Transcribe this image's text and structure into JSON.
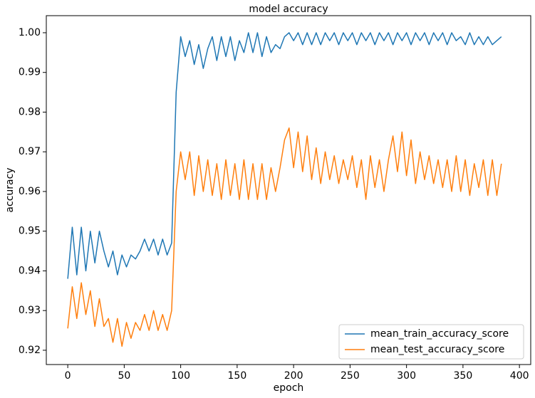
{
  "chart_data": {
    "type": "line",
    "title": "model accuracy",
    "xlabel": "epoch",
    "ylabel": "accuracy",
    "x": [
      0,
      4,
      8,
      12,
      16,
      20,
      24,
      28,
      32,
      36,
      40,
      44,
      48,
      52,
      56,
      60,
      64,
      68,
      72,
      76,
      80,
      84,
      88,
      92,
      96,
      100,
      104,
      108,
      112,
      116,
      120,
      124,
      128,
      132,
      136,
      140,
      144,
      148,
      152,
      156,
      160,
      164,
      168,
      172,
      176,
      180,
      184,
      188,
      192,
      196,
      200,
      204,
      208,
      212,
      216,
      220,
      224,
      228,
      232,
      236,
      240,
      244,
      248,
      252,
      256,
      260,
      264,
      268,
      272,
      276,
      280,
      284,
      288,
      292,
      296,
      300,
      304,
      308,
      312,
      316,
      320,
      324,
      328,
      332,
      336,
      340,
      344,
      348,
      352,
      356,
      360,
      364,
      368,
      372,
      376,
      380,
      384
    ],
    "series": [
      {
        "name": "mean_train_accuracy_score",
        "color": "#1f77b4",
        "values": [
          0.938,
          0.951,
          0.939,
          0.951,
          0.94,
          0.95,
          0.942,
          0.95,
          0.945,
          0.941,
          0.945,
          0.939,
          0.944,
          0.941,
          0.944,
          0.943,
          0.945,
          0.948,
          0.945,
          0.948,
          0.944,
          0.948,
          0.944,
          0.947,
          0.985,
          0.999,
          0.994,
          0.998,
          0.992,
          0.997,
          0.991,
          0.996,
          0.999,
          0.993,
          0.999,
          0.994,
          0.999,
          0.993,
          0.998,
          0.995,
          1.0,
          0.995,
          1.0,
          0.994,
          0.999,
          0.995,
          0.997,
          0.996,
          0.999,
          1.0,
          0.998,
          1.0,
          0.997,
          1.0,
          0.997,
          1.0,
          0.997,
          1.0,
          0.998,
          1.0,
          0.997,
          1.0,
          0.998,
          1.0,
          0.997,
          1.0,
          0.998,
          1.0,
          0.997,
          1.0,
          0.998,
          1.0,
          0.997,
          1.0,
          0.998,
          1.0,
          0.997,
          1.0,
          0.998,
          1.0,
          0.997,
          1.0,
          0.998,
          1.0,
          0.997,
          1.0,
          0.998,
          0.999,
          0.997,
          1.0,
          0.997,
          0.999,
          0.997,
          0.999,
          0.997,
          0.998,
          0.999
        ]
      },
      {
        "name": "mean_test_accuracy_score",
        "color": "#ff7f0e",
        "values": [
          0.9255,
          0.936,
          0.928,
          0.937,
          0.929,
          0.935,
          0.926,
          0.933,
          0.926,
          0.928,
          0.922,
          0.928,
          0.921,
          0.927,
          0.923,
          0.927,
          0.925,
          0.929,
          0.925,
          0.93,
          0.925,
          0.929,
          0.925,
          0.93,
          0.96,
          0.97,
          0.963,
          0.97,
          0.959,
          0.969,
          0.96,
          0.968,
          0.959,
          0.967,
          0.958,
          0.968,
          0.959,
          0.967,
          0.958,
          0.968,
          0.958,
          0.967,
          0.958,
          0.967,
          0.958,
          0.966,
          0.96,
          0.966,
          0.973,
          0.976,
          0.966,
          0.975,
          0.965,
          0.974,
          0.963,
          0.971,
          0.962,
          0.97,
          0.963,
          0.969,
          0.962,
          0.968,
          0.963,
          0.969,
          0.961,
          0.968,
          0.958,
          0.969,
          0.961,
          0.968,
          0.96,
          0.968,
          0.974,
          0.965,
          0.975,
          0.964,
          0.973,
          0.962,
          0.97,
          0.963,
          0.969,
          0.962,
          0.968,
          0.961,
          0.968,
          0.96,
          0.969,
          0.96,
          0.968,
          0.959,
          0.967,
          0.961,
          0.968,
          0.959,
          0.968,
          0.959,
          0.967
        ]
      }
    ],
    "xlim": [
      -19,
      410
    ],
    "xticks": [
      0,
      50,
      100,
      150,
      200,
      250,
      300,
      350,
      400
    ],
    "ylim": [
      0.9164,
      1.0043
    ],
    "yticks": [
      0.92,
      0.93,
      0.94,
      0.95,
      0.96,
      0.97,
      0.98,
      0.99,
      {
        "value": 1,
        "label": "1.00"
      }
    ],
    "legend": "lower right"
  }
}
